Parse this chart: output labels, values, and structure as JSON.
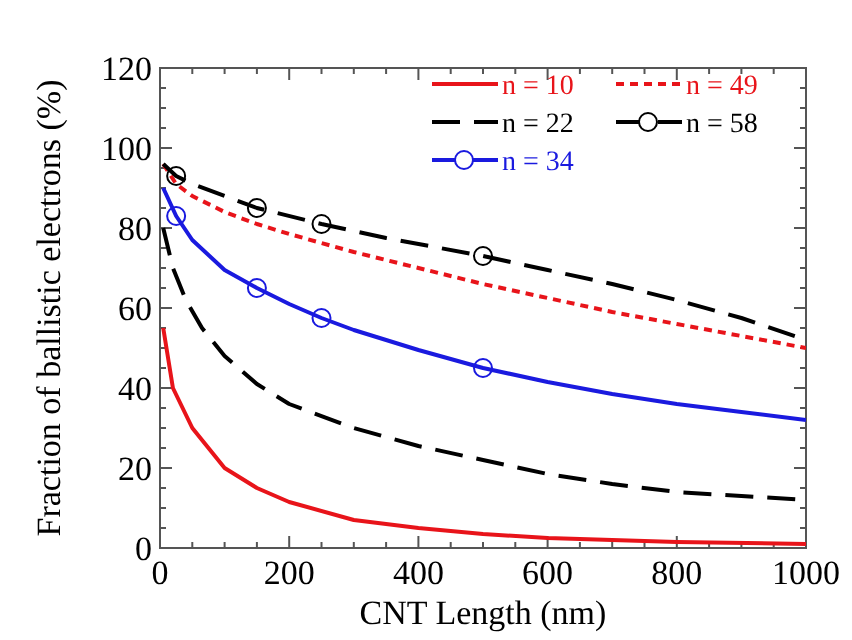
{
  "chart_data": {
    "type": "line",
    "xlabel": "CNT Length (nm)",
    "ylabel": "Fraction of ballistic electrons (%)",
    "xlim": [
      0,
      1000
    ],
    "ylim": [
      0,
      120
    ],
    "xticks": [
      0,
      {
        "value": 50,
        "label": null
      },
      {
        "value": 100,
        "label": null
      },
      {
        "value": 150,
        "label": null
      },
      200,
      {
        "value": 250,
        "label": null
      },
      {
        "value": 300,
        "label": null
      },
      {
        "value": 350,
        "label": null
      },
      400,
      {
        "value": 450,
        "label": null
      },
      {
        "value": 500,
        "label": null
      },
      {
        "value": 550,
        "label": null
      },
      600,
      {
        "value": 650,
        "label": null
      },
      {
        "value": 700,
        "label": null
      },
      {
        "value": 750,
        "label": null
      },
      800,
      {
        "value": 850,
        "label": null
      },
      {
        "value": 900,
        "label": null
      },
      {
        "value": 950,
        "label": null
      },
      1000
    ],
    "yticks": [
      0,
      {
        "value": 5,
        "label": null
      },
      {
        "value": 10,
        "label": null
      },
      {
        "value": 15,
        "label": null
      },
      20,
      {
        "value": 25,
        "label": null
      },
      {
        "value": 30,
        "label": null
      },
      {
        "value": 35,
        "label": null
      },
      40,
      {
        "value": 45,
        "label": null
      },
      {
        "value": 50,
        "label": null
      },
      {
        "value": 55,
        "label": null
      },
      60,
      {
        "value": 65,
        "label": null
      },
      {
        "value": 70,
        "label": null
      },
      {
        "value": 75,
        "label": null
      },
      80,
      {
        "value": 85,
        "label": null
      },
      {
        "value": 90,
        "label": null
      },
      {
        "value": 95,
        "label": null
      },
      100,
      {
        "value": 105,
        "label": null
      },
      {
        "value": 110,
        "label": null
      },
      {
        "value": 115,
        "label": null
      },
      120
    ],
    "grid": false,
    "legend": "top right",
    "series": [
      {
        "name": "n = 10",
        "color": "#e8141a",
        "line_style": "solid",
        "x": [
          5,
          20,
          50,
          100,
          150,
          200,
          300,
          400,
          500,
          600,
          800,
          1000
        ],
        "values": [
          55,
          40,
          30,
          20,
          15,
          11.5,
          7,
          5,
          3.5,
          2.5,
          1.5,
          1
        ]
      },
      {
        "name": "n = 49",
        "color": "#e8141a",
        "line_style": "dotted",
        "x": [
          5,
          25,
          50,
          100,
          150,
          200,
          300,
          400,
          500,
          600,
          700,
          800,
          900,
          1000
        ],
        "values": [
          96,
          91,
          88,
          84,
          81,
          78.5,
          74,
          70,
          66,
          62.5,
          59,
          56,
          53,
          50
        ]
      },
      {
        "name": "n = 22",
        "color": "#000000",
        "line_style": "dashed",
        "x": [
          5,
          20,
          40,
          65,
          100,
          150,
          200,
          300,
          400,
          500,
          600,
          700,
          800,
          900,
          1000
        ],
        "values": [
          80,
          70,
          62,
          55,
          48,
          41,
          36,
          30,
          25.5,
          22,
          18.5,
          16,
          14,
          13,
          12
        ]
      },
      {
        "name": "n = 58",
        "color": "#000000",
        "line_style": "dashed",
        "x": [
          5,
          25,
          50,
          100,
          150,
          250,
          350,
          500,
          600,
          700,
          800,
          900,
          1000
        ],
        "values": [
          96,
          93,
          91,
          88,
          85,
          81,
          77.5,
          73,
          69.5,
          66,
          62,
          57.5,
          52
        ]
      },
      {
        "name": "n = 34",
        "color": "#1a1adf",
        "line_style": "solid",
        "x": [
          5,
          25,
          50,
          100,
          150,
          200,
          250,
          300,
          400,
          500,
          600,
          700,
          800,
          900,
          1000
        ],
        "values": [
          90,
          83,
          77,
          69.5,
          65,
          61,
          57.5,
          54.5,
          49.5,
          45,
          41.5,
          38.5,
          36,
          34,
          32
        ]
      },
      {
        "type": "scatter",
        "marker": "circle",
        "color": "#000000",
        "x": [
          25,
          150,
          250,
          500
        ],
        "values": [
          93,
          85,
          81,
          73
        ]
      },
      {
        "type": "scatter",
        "marker": "circle",
        "color": "#1a1adf",
        "x": [
          25,
          150,
          250,
          500
        ],
        "values": [
          83,
          65,
          57.5,
          45
        ]
      }
    ]
  }
}
